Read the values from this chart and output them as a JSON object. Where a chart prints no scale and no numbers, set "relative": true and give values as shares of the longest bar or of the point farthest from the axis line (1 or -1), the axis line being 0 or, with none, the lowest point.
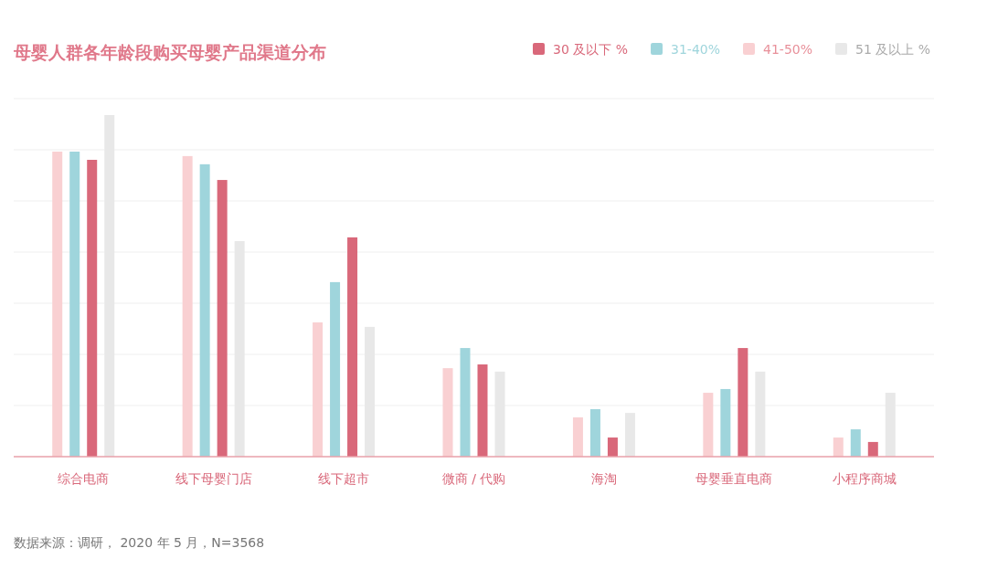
{
  "chart_data": {
    "type": "bar",
    "title": "母婴人群各年龄段购买母婴产品渠道分布",
    "relative": true,
    "grid": "y",
    "legend": "top right",
    "categories": [
      "综合电商",
      "线下母婴门店",
      "线下超市",
      "微商 / 代购",
      "海淘",
      "母婴垂直电商",
      "小程序商城"
    ],
    "series": [
      {
        "name": "30 及以下 %",
        "color": "#d9687a",
        "values": [
          0.869,
          0.81,
          0.642,
          0.27,
          0.056,
          0.318,
          0.043
        ]
      },
      {
        "name": "31-40%",
        "color": "#9fd5dc",
        "values": [
          0.893,
          0.856,
          0.511,
          0.318,
          0.139,
          0.198,
          0.08
        ]
      },
      {
        "name": "41-50%",
        "color": "#f9d0d2",
        "values": [
          0.893,
          0.88,
          0.393,
          0.259,
          0.115,
          0.187,
          0.056
        ]
      },
      {
        "name": "51 及以上 %",
        "color": "#e8e8e8",
        "values": [
          1,
          0.631,
          0.38,
          0.249,
          0.128,
          0.249,
          0.187
        ]
      }
    ],
    "annotations": [
      "数据来源：调研， 2020 年 5 月，N=3568"
    ]
  }
}
